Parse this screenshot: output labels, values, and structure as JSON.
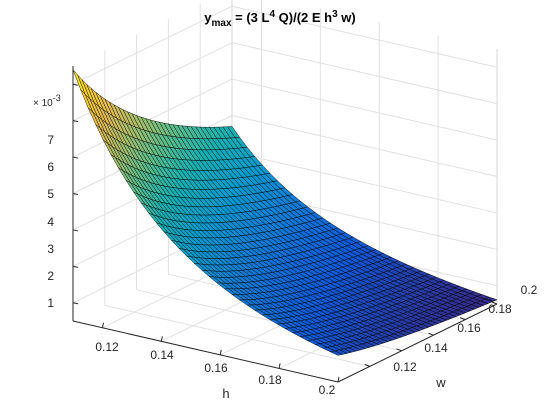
{
  "chart_data": {
    "type": "surface",
    "title_parts": [
      "y",
      "max",
      " = (3 L",
      "4",
      " Q)/(2 E h",
      "3",
      " w)"
    ],
    "xlabel": "h",
    "ylabel": "w",
    "zlabel": "",
    "zexponent": [
      "× 10",
      "-3"
    ],
    "x_ticks": [
      "0.12",
      "0.14",
      "0.16",
      "0.18",
      "0.2"
    ],
    "y_ticks": [
      "0.12",
      "0.14",
      "0.16",
      "0.18",
      "0.2"
    ],
    "z_ticks": [
      "1",
      "2",
      "3",
      "4",
      "5",
      "6",
      "7"
    ],
    "xlim": [
      0.11,
      0.2
    ],
    "ylim": [
      0.1,
      0.2
    ],
    "zlim": [
      0.0005,
      0.0075
    ],
    "formula": "z = k / (h^3 * w)",
    "z_at_min_corner": 0.0074,
    "z_at_max_corner": 0.0012,
    "grid": true,
    "colormap": "parula",
    "edge_color": "#000000"
  }
}
